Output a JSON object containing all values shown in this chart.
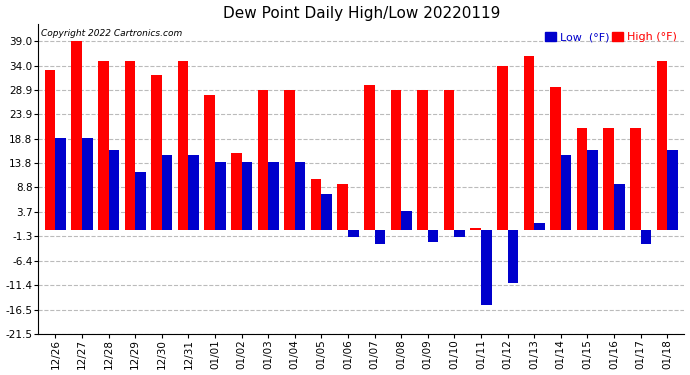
{
  "title": "Dew Point Daily High/Low 20220119",
  "copyright": "Copyright 2022 Cartronics.com",
  "dates": [
    "12/26",
    "12/27",
    "12/28",
    "12/29",
    "12/30",
    "12/31",
    "01/01",
    "01/02",
    "01/03",
    "01/04",
    "01/05",
    "01/06",
    "01/07",
    "01/08",
    "01/09",
    "01/10",
    "01/11",
    "01/12",
    "01/13",
    "01/14",
    "01/15",
    "01/16",
    "01/17",
    "01/18"
  ],
  "high_values": [
    33.0,
    39.0,
    35.0,
    35.0,
    32.0,
    35.0,
    28.0,
    16.0,
    29.0,
    29.0,
    10.5,
    9.5,
    30.0,
    29.0,
    29.0,
    29.0,
    0.5,
    34.0,
    36.0,
    29.5,
    21.0,
    21.0,
    21.0,
    35.0
  ],
  "low_values": [
    19.0,
    19.0,
    16.5,
    12.0,
    15.5,
    15.5,
    14.0,
    14.0,
    14.0,
    14.0,
    7.5,
    -1.5,
    -3.0,
    4.0,
    -2.5,
    -1.5,
    -15.5,
    -11.0,
    1.5,
    15.5,
    16.5,
    9.5,
    -3.0,
    16.5
  ],
  "high_color": "#ff0000",
  "low_color": "#0000cc",
  "bg_color": "#ffffff",
  "grid_color": "#bbbbbb",
  "ylim": [
    -21.5,
    42.5
  ],
  "yticks": [
    -21.5,
    -16.5,
    -11.4,
    -6.4,
    -1.3,
    3.7,
    8.8,
    13.8,
    18.8,
    23.9,
    28.9,
    34.0,
    39.0
  ],
  "bar_width": 0.4
}
